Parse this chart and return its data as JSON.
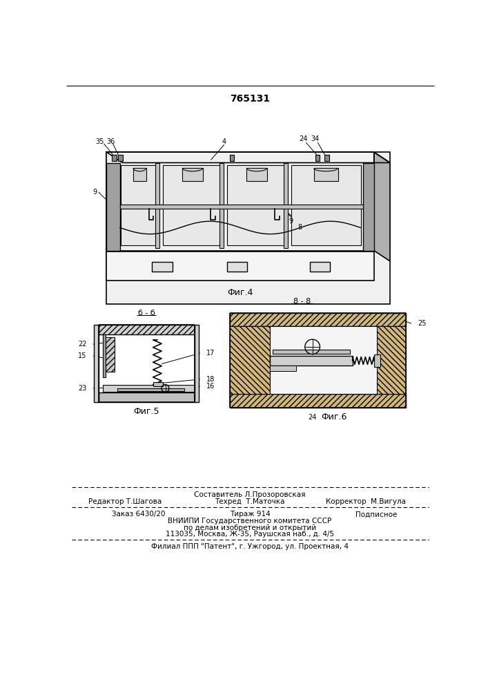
{
  "patent_number": "765131",
  "background_color": "#ffffff",
  "line_color": "#000000",
  "fig4_caption": "Фиг.4",
  "fig5_caption": "Фиг.5",
  "fig6_caption": "Фиг.6",
  "header_line1": "Составитель Л.Прозоровская",
  "header_line2_left": "Редактор Т.Шагова",
  "header_line2_mid": "Техред  Т.Маточка",
  "header_line2_right": "Корректор  М.Вигула",
  "footer_line1_left": "Заказ 6430/20",
  "footer_line1_mid": "Тираж 914",
  "footer_line1_right": "Подписное",
  "footer_line2": "ВНИИПИ Государственного комитета СССР",
  "footer_line3": "по делам изобретений и открытий",
  "footer_line4": "113035, Москва, Ж-35, Раушская наб., д. 4/5",
  "footer_line5": "Филиал ППП \"Патент\", г. Ужгород, ул. Проектная, 4"
}
